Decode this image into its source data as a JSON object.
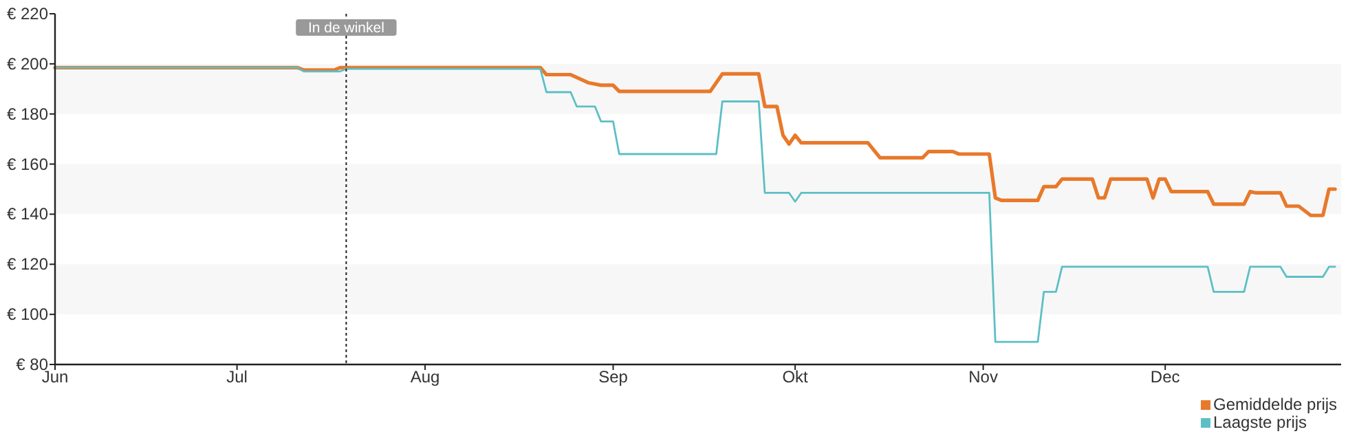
{
  "chart_data": {
    "type": "line",
    "series": [
      {
        "name": "Gemiddelde prijs",
        "color": "#e8792b",
        "x": [
          "--06-01",
          "--07-11",
          "--07-12",
          "--07-17",
          "--07-18",
          "--08-20",
          "--08-21",
          "--08-25",
          "--08-26",
          "--08-28",
          "--08-30",
          "--09-01",
          "--09-02",
          "--09-17",
          "--09-19",
          "--09-25",
          "--09-26",
          "--09-28",
          "--09-29",
          "--09-30",
          "--10-01",
          "--10-02",
          "--10-13",
          "--10-15",
          "--10-22",
          "--10-23",
          "--10-27",
          "--10-28",
          "--11-02",
          "--11-03",
          "--11-04",
          "--11-10",
          "--11-11",
          "--11-13",
          "--11-14",
          "--11-19",
          "--11-20",
          "--11-21",
          "--11-22",
          "--11-28",
          "--11-29",
          "--11-30",
          "--12-01",
          "--12-02",
          "--12-08",
          "--12-09",
          "--12-14",
          "--12-15",
          "--12-16",
          "--12-20",
          "--12-21",
          "--12-23",
          "--12-25",
          "--12-27",
          "--12-28",
          "--12-29"
        ],
        "values": [
          198.5,
          198.5,
          197.5,
          197.5,
          198.5,
          198.5,
          195.7,
          195.7,
          194.6,
          192.4,
          191.5,
          191.5,
          189,
          189,
          196,
          196,
          183,
          183,
          171.5,
          168,
          171.5,
          168.5,
          168.5,
          162.5,
          162.5,
          165,
          165,
          164,
          164,
          146.5,
          145.5,
          145.5,
          151,
          151,
          154,
          154,
          146.5,
          146.5,
          154,
          154,
          146.5,
          154,
          154,
          149,
          149,
          144,
          144,
          149,
          148.5,
          148.5,
          143.2,
          143.2,
          139.5,
          139.5,
          150,
          150
        ]
      },
      {
        "name": "Laagste prijs",
        "color": "#5dbfc6",
        "x": [
          "--06-01",
          "--07-11",
          "--07-12",
          "--07-18",
          "--07-19",
          "--08-20",
          "--08-21",
          "--08-25",
          "--08-26",
          "--08-29",
          "--08-30",
          "--09-01",
          "--09-02",
          "--09-18",
          "--09-19",
          "--09-25",
          "--09-26",
          "--09-30",
          "--10-01",
          "--10-02",
          "--11-02",
          "--11-03",
          "--11-10",
          "--11-11",
          "--11-13",
          "--11-14",
          "--12-08",
          "--12-09",
          "--12-14",
          "--12-15",
          "--12-20",
          "--12-21",
          "--12-27",
          "--12-28",
          "--12-29"
        ],
        "values": [
          198.5,
          198.5,
          197,
          197,
          198,
          198,
          188.7,
          188.7,
          183,
          183,
          177,
          177,
          164,
          164,
          185,
          185,
          148.5,
          148.5,
          145,
          148.5,
          148.5,
          89,
          89,
          109,
          109,
          119,
          119,
          109,
          109,
          119,
          119,
          115,
          115,
          119,
          119
        ]
      }
    ],
    "xlim": [
      "--06-01",
      "--12-30"
    ],
    "xticks": [
      {
        "value": "--06-01",
        "label": "Jun"
      },
      {
        "value": "--07-01",
        "label": "Jul"
      },
      {
        "value": "--08-01",
        "label": "Aug"
      },
      {
        "value": "--09-01",
        "label": "Sep"
      },
      {
        "value": "--10-01",
        "label": "Okt"
      },
      {
        "value": "--11-01",
        "label": "Nov"
      },
      {
        "value": "--12-01",
        "label": "Dec"
      }
    ],
    "ylim": [
      80,
      220
    ],
    "yticks": [
      {
        "value": 80,
        "label": "€ 80"
      },
      {
        "value": 100,
        "label": "€ 100"
      },
      {
        "value": 120,
        "label": "€ 120"
      },
      {
        "value": 140,
        "label": "€ 140"
      },
      {
        "value": 160,
        "label": "€ 160"
      },
      {
        "value": 180,
        "label": "€ 180"
      },
      {
        "value": 200,
        "label": "€ 200"
      },
      {
        "value": 220,
        "label": "€ 220"
      }
    ],
    "bands": [
      {
        "axis": "y",
        "from": 180,
        "to": 200,
        "color": "#f7f7f7"
      },
      {
        "axis": "y",
        "from": 140,
        "to": 160,
        "color": "#f7f7f7"
      },
      {
        "axis": "y",
        "from": 100,
        "to": 120,
        "color": "#f7f7f7"
      }
    ],
    "ref_lines": [
      {
        "axis": "x",
        "value": "--07-19",
        "label": "In de winkel",
        "line_style": "dotted"
      }
    ],
    "legend": "bottom right",
    "grid": false,
    "marker": "none",
    "line_style": "solid"
  }
}
